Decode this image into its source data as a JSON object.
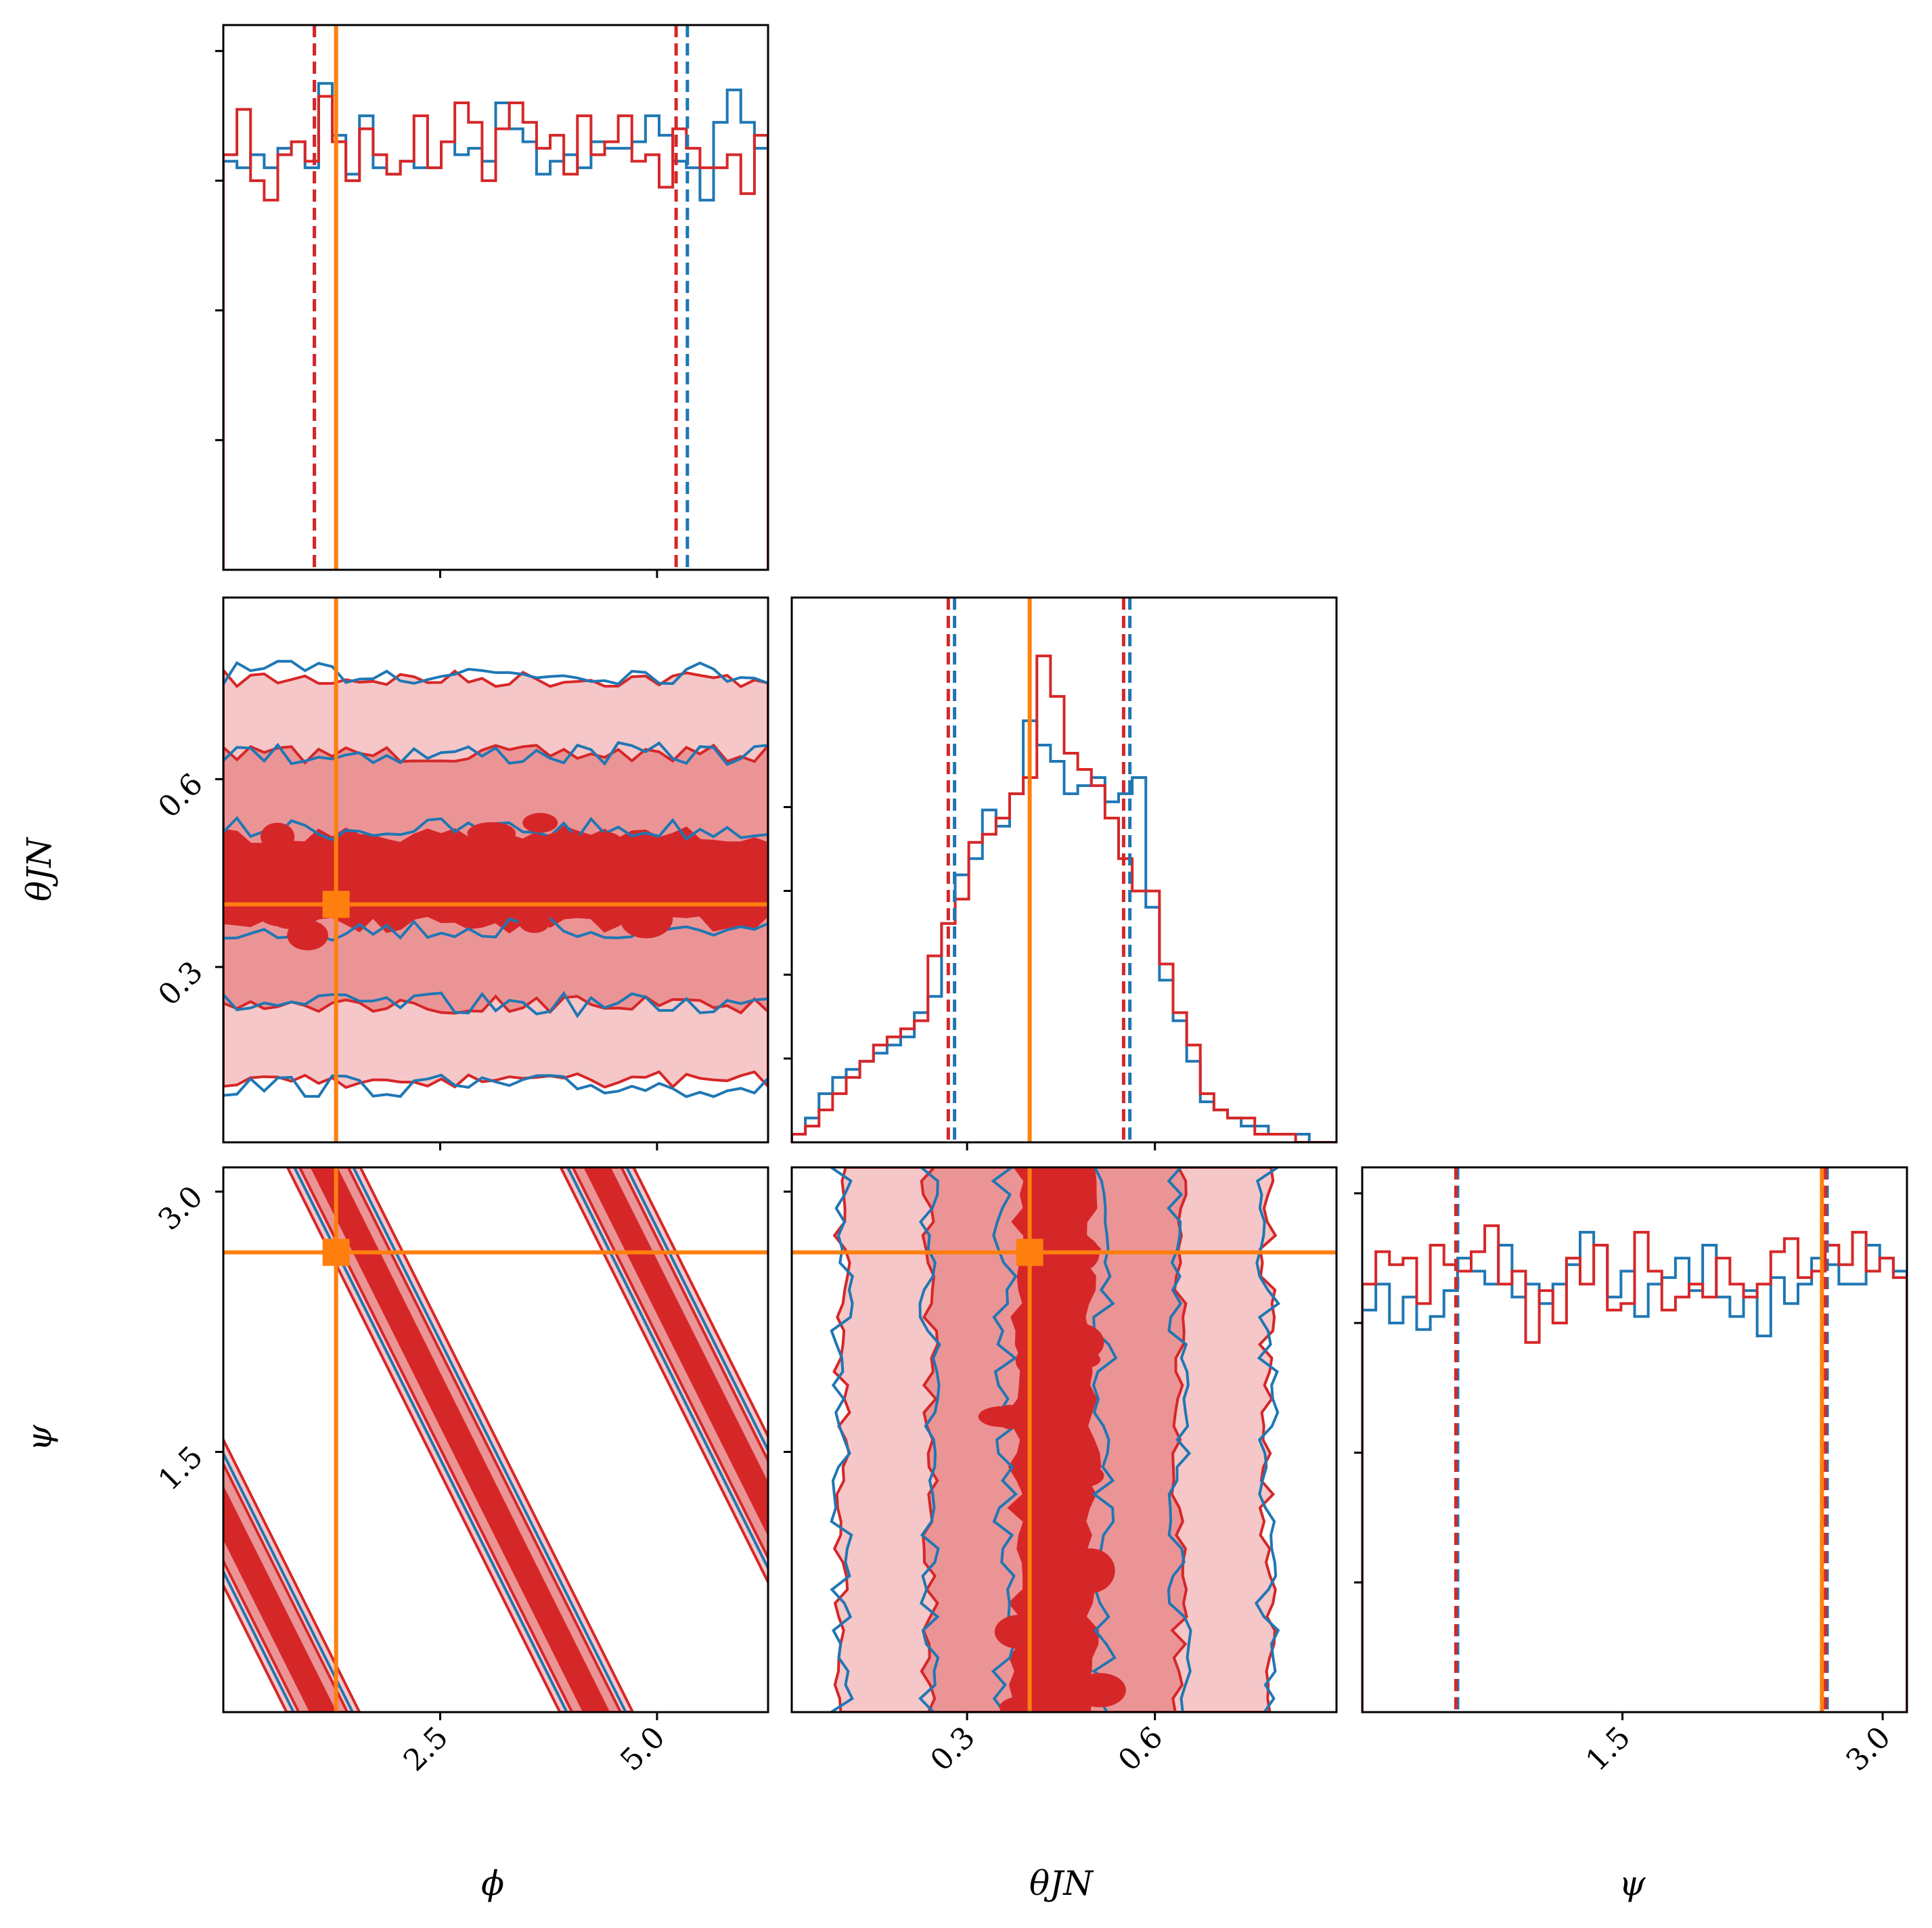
{
  "chart_data": {
    "type": "corner",
    "colors": {
      "series_1": "#1f77b4",
      "series_2": "#d62728",
      "truth": "#ff7f0e"
    },
    "parameters": [
      {
        "key": "phi",
        "label": "ϕ",
        "range": [
          0,
          6.28
        ],
        "ticks": [
          "2.5",
          "5.0"
        ],
        "tick_values": [
          2.5,
          5.0
        ]
      },
      {
        "key": "theta_jn",
        "label": "θJN",
        "range": [
          0.02,
          0.89
        ],
        "ticks": [
          "0.3",
          "0.6"
        ],
        "tick_values": [
          0.3,
          0.6
        ]
      },
      {
        "key": "psi",
        "label": "ψ",
        "range": [
          0,
          3.14
        ],
        "ticks": [
          "1.5",
          "3.0"
        ],
        "tick_values": [
          1.5,
          3.0
        ]
      }
    ],
    "y_tick_labels": {
      "theta_jn": [
        "0.6",
        "0.3"
      ],
      "psi": [
        "3.0",
        "1.5"
      ]
    },
    "truth": {
      "phi": 1.3,
      "theta_jn": 0.4,
      "psi": 2.65
    },
    "credible_intervals": {
      "phi": {
        "series_1": [
          1.05,
          5.35
        ],
        "series_2": [
          1.05,
          5.22
        ]
      },
      "theta_jn": {
        "series_1": [
          0.28,
          0.56
        ],
        "series_2": [
          0.27,
          0.55
        ]
      },
      "psi": {
        "series_1": [
          0.55,
          2.68
        ],
        "series_2": [
          0.54,
          2.67
        ]
      }
    },
    "histograms": {
      "phi": {
        "bins": 40,
        "series_1": [
          0.63,
          0.62,
          0.64,
          0.62,
          0.65,
          0.66,
          0.62,
          0.75,
          0.67,
          0.61,
          0.7,
          0.62,
          0.61,
          0.63,
          0.62,
          0.62,
          0.66,
          0.64,
          0.65,
          0.63,
          0.72,
          0.68,
          0.66,
          0.61,
          0.63,
          0.64,
          0.62,
          0.66,
          0.65,
          0.65,
          0.66,
          0.7,
          0.67,
          0.63,
          0.62,
          0.57,
          0.69,
          0.74,
          0.69,
          0.65
        ],
        "series_2": [
          0.64,
          0.71,
          0.6,
          0.57,
          0.64,
          0.66,
          0.63,
          0.73,
          0.66,
          0.6,
          0.68,
          0.64,
          0.61,
          0.63,
          0.7,
          0.62,
          0.66,
          0.72,
          0.69,
          0.6,
          0.68,
          0.72,
          0.69,
          0.65,
          0.67,
          0.61,
          0.7,
          0.64,
          0.66,
          0.7,
          0.63,
          0.64,
          0.59,
          0.68,
          0.65,
          0.62,
          0.62,
          0.64,
          0.58,
          0.67
        ]
      },
      "theta_jn": {
        "bins": 40,
        "series_1": [
          0.01,
          0.03,
          0.06,
          0.08,
          0.09,
          0.1,
          0.11,
          0.12,
          0.13,
          0.16,
          0.18,
          0.27,
          0.33,
          0.35,
          0.41,
          0.39,
          0.43,
          0.52,
          0.49,
          0.47,
          0.43,
          0.44,
          0.45,
          0.42,
          0.43,
          0.45,
          0.29,
          0.2,
          0.15,
          0.1,
          0.05,
          0.04,
          0.03,
          0.02,
          0.02,
          0.01,
          0.01,
          0.01,
          0.0,
          0.0
        ],
        "series_2": [
          0.01,
          0.02,
          0.04,
          0.06,
          0.08,
          0.1,
          0.12,
          0.13,
          0.14,
          0.15,
          0.23,
          0.27,
          0.3,
          0.37,
          0.38,
          0.4,
          0.43,
          0.45,
          0.6,
          0.55,
          0.48,
          0.46,
          0.44,
          0.4,
          0.35,
          0.31,
          0.31,
          0.22,
          0.16,
          0.12,
          0.06,
          0.04,
          0.03,
          0.03,
          0.01,
          0.01,
          0.01,
          0.0,
          0.0,
          0.0
        ]
      },
      "psi": {
        "bins": 40,
        "series_1": [
          0.62,
          0.66,
          0.6,
          0.64,
          0.59,
          0.61,
          0.65,
          0.7,
          0.68,
          0.66,
          0.72,
          0.64,
          0.66,
          0.63,
          0.66,
          0.69,
          0.74,
          0.72,
          0.64,
          0.68,
          0.61,
          0.66,
          0.67,
          0.7,
          0.65,
          0.72,
          0.64,
          0.61,
          0.65,
          0.58,
          0.67,
          0.63,
          0.66,
          0.7,
          0.69,
          0.66,
          0.66,
          0.72,
          0.7,
          0.68
        ],
        "series_2": [
          0.66,
          0.71,
          0.69,
          0.7,
          0.63,
          0.72,
          0.69,
          0.68,
          0.71,
          0.75,
          0.66,
          0.68,
          0.57,
          0.65,
          0.6,
          0.7,
          0.66,
          0.72,
          0.62,
          0.63,
          0.74,
          0.68,
          0.62,
          0.64,
          0.66,
          0.64,
          0.7,
          0.66,
          0.64,
          0.66,
          0.71,
          0.73,
          0.67,
          0.68,
          0.72,
          0.69,
          0.74,
          0.68,
          0.7,
          0.67
        ]
      }
    },
    "joint": {
      "phi_vs_theta_jn": {
        "description_values": "uniform in phi, theta_jn concentrated near 0.45"
      },
      "phi_vs_psi": {
        "relation": "diagonal bands, psi decreasing with phi (mod pi)"
      },
      "theta_jn_vs_psi": {
        "description_values": "uniform in psi, theta_jn concentrated near 0.45"
      }
    }
  }
}
